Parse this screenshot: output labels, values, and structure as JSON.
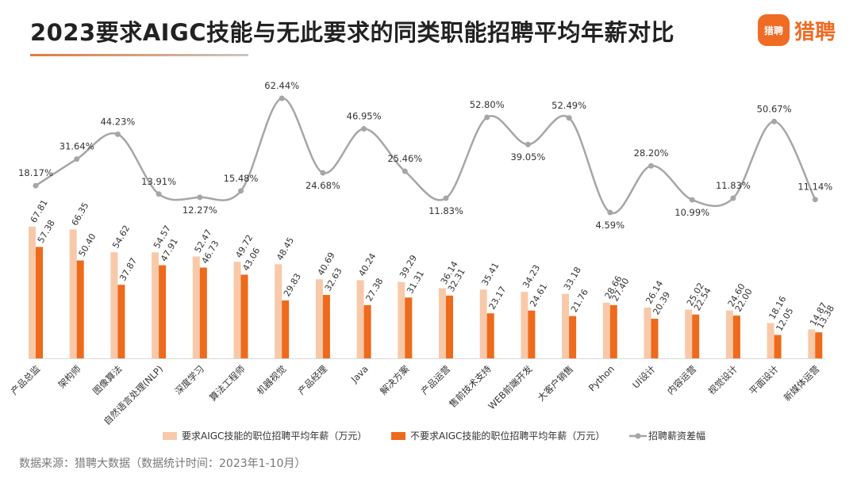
{
  "title": "2023要求AIGC技能与无此要求的同类职能招聘平均年薪对比",
  "logo": {
    "icon_text": "猎聘",
    "text": "猎聘"
  },
  "source": "数据来源：猎聘大数据（数据统计时间：2023年1-10月）",
  "colors": {
    "with_aigc": "#f8c9a9",
    "without_aigc": "#ee6a1c",
    "gap_line": "#a6a6a6",
    "accent": "#f06b24"
  },
  "chart_data": {
    "type": "bar",
    "categories": [
      "产品总监",
      "架构师",
      "图像算法",
      "自然语言处理(NLP)",
      "深度学习",
      "算法工程师",
      "机器视觉",
      "产品经理",
      "Java",
      "解决方案",
      "产品运营",
      "售前技术支持",
      "WEB前端开发",
      "大客户销售",
      "Python",
      "UI设计",
      "内容运营",
      "视觉设计",
      "平面设计",
      "新媒体运营"
    ],
    "series": [
      {
        "name": "要求AIGC技能的职位招聘平均年薪（万元）",
        "type": "bar",
        "values": [
          67.81,
          66.35,
          54.62,
          54.57,
          52.47,
          49.72,
          48.45,
          40.69,
          40.24,
          39.29,
          36.14,
          35.41,
          34.23,
          33.18,
          28.66,
          26.14,
          25.02,
          24.6,
          18.16,
          14.87
        ]
      },
      {
        "name": "不要求AIGC技能的职位招聘平均年薪（万元）",
        "type": "bar",
        "values": [
          57.38,
          50.4,
          37.87,
          47.91,
          46.73,
          43.06,
          29.83,
          32.63,
          27.38,
          31.31,
          32.31,
          23.17,
          24.61,
          21.76,
          27.4,
          20.39,
          22.54,
          22.0,
          12.05,
          13.38
        ]
      },
      {
        "name": "招聘薪资差幅",
        "type": "line",
        "unit": "%",
        "values": [
          18.17,
          31.64,
          44.23,
          13.91,
          12.27,
          15.48,
          62.44,
          24.68,
          46.95,
          25.46,
          11.83,
          52.8,
          39.05,
          52.49,
          4.59,
          28.2,
          10.99,
          11.83,
          50.67,
          11.14
        ],
        "labels": [
          "18.17%",
          "31.64%",
          "44.23%",
          "13.91%",
          "12.27%",
          "15.48%",
          "62.44%",
          "24.68%",
          "46.95%",
          "25.46%",
          "11.83%",
          "52.80%",
          "39.05%",
          "52.49%",
          "4.59%",
          "28.20%",
          "10.99%",
          "11.83%",
          "50.67%",
          "11.14%"
        ]
      }
    ],
    "legend_position": "bottom",
    "grid": false
  }
}
